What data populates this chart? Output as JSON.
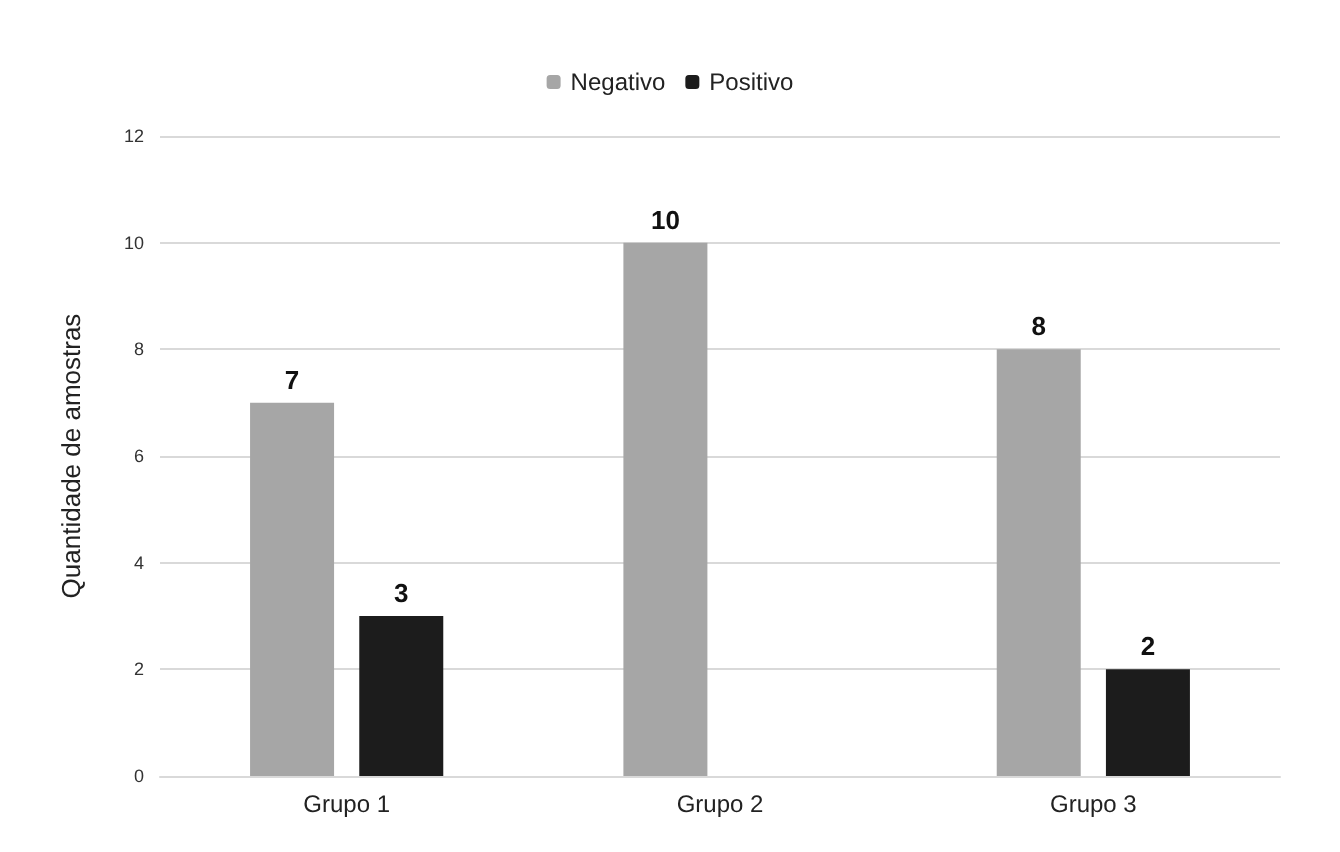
{
  "chart_data": {
    "type": "bar",
    "ylabel": "Quantidade de amostras",
    "categories": [
      "Grupo 1",
      "Grupo 2",
      "Grupo 3"
    ],
    "series": [
      {
        "name": "Negativo",
        "color": "#a6a6a6",
        "values": [
          7,
          10,
          8
        ]
      },
      {
        "name": "Positivo",
        "color": "#1c1c1c",
        "values": [
          3,
          null,
          2
        ]
      }
    ],
    "ylim": [
      0,
      12
    ],
    "yticks": [
      0,
      2,
      4,
      6,
      8,
      10,
      12
    ],
    "grid": "y",
    "legend": "top",
    "data_labels": true
  }
}
